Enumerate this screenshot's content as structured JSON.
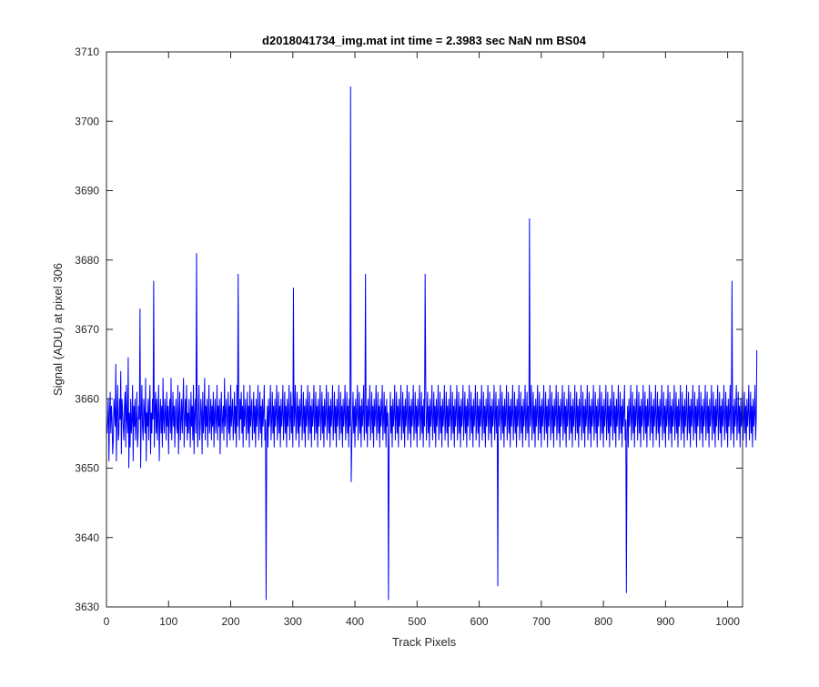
{
  "chart_data": {
    "type": "line",
    "title": "d2018041734_img.mat int time = 2.3983 sec  NaN nm BS04",
    "xlabel": "Track Pixels",
    "ylabel": "Signal (ADU) at pixel 306",
    "xlim": [
      0,
      1024
    ],
    "ylim": [
      3630,
      3710
    ],
    "xticks": [
      0,
      100,
      200,
      300,
      400,
      500,
      600,
      700,
      800,
      900,
      1000
    ],
    "yticks": [
      3630,
      3640,
      3650,
      3660,
      3670,
      3680,
      3690,
      3700,
      3710
    ],
    "grid": false,
    "legend": "none",
    "line_color": "#0000ff",
    "series": [
      {
        "x_start": 1,
        "x_step": 1,
        "values": [
          3655,
          3657,
          3660,
          3651,
          3658,
          3661,
          3655,
          3659,
          3657,
          3652,
          3654,
          3660,
          3658,
          3656,
          3665,
          3651,
          3658,
          3662,
          3654,
          3655,
          3660,
          3657,
          3664,
          3652,
          3660,
          3658,
          3656,
          3654,
          3659,
          3661,
          3653,
          3662,
          3657,
          3655,
          3666,
          3650,
          3658,
          3653,
          3660,
          3655,
          3657,
          3662,
          3651,
          3659,
          3656,
          3660,
          3654,
          3657,
          3661,
          3653,
          3655,
          3659,
          3657,
          3673,
          3650,
          3657,
          3662,
          3656,
          3654,
          3660,
          3658,
          3655,
          3663,
          3651,
          3658,
          3656,
          3660,
          3654,
          3659,
          3662,
          3652,
          3658,
          3655,
          3660,
          3657,
          3677,
          3653,
          3658,
          3661,
          3655,
          3660,
          3654,
          3658,
          3662,
          3651,
          3657,
          3660,
          3655,
          3659,
          3653,
          3663,
          3657,
          3655,
          3660,
          3658,
          3654,
          3661,
          3656,
          3659,
          3652,
          3658,
          3660,
          3655,
          3663,
          3654,
          3657,
          3661,
          3656,
          3659,
          3653,
          3658,
          3660,
          3656,
          3655,
          3662,
          3652,
          3658,
          3661,
          3654,
          3657,
          3660,
          3655,
          3659,
          3663,
          3653,
          3657,
          3660,
          3656,
          3662,
          3654,
          3658,
          3655,
          3660,
          3657,
          3653,
          3661,
          3656,
          3659,
          3654,
          3662,
          3652,
          3658,
          3660,
          3655,
          3681,
          3657,
          3653,
          3659,
          3662,
          3654,
          3656,
          3660,
          3658,
          3652,
          3661,
          3655,
          3657,
          3663,
          3654,
          3659,
          3656,
          3660,
          3653,
          3658,
          3662,
          3655,
          3657,
          3660,
          3654,
          3659,
          3656,
          3661,
          3653,
          3658,
          3660,
          3655,
          3657,
          3662,
          3654,
          3659,
          3656,
          3660,
          3652,
          3658,
          3661,
          3655,
          3657,
          3659,
          3654,
          3663,
          3656,
          3658,
          3660,
          3653,
          3657,
          3661,
          3655,
          3659,
          3654,
          3662,
          3656,
          3658,
          3660,
          3654,
          3657,
          3661,
          3655,
          3659,
          3653,
          3662,
          3656,
          3678,
          3658,
          3654,
          3660,
          3657,
          3661,
          3655,
          3659,
          3653,
          3662,
          3656,
          3658,
          3660,
          3654,
          3657,
          3661,
          3655,
          3659,
          3653,
          3662,
          3656,
          3658,
          3660,
          3654,
          3657,
          3661,
          3655,
          3659,
          3653,
          3660,
          3656,
          3658,
          3662,
          3654,
          3657,
          3661,
          3655,
          3659,
          3653,
          3660,
          3656,
          3658,
          3662,
          3654,
          3657,
          3631,
          3655,
          3659,
          3653,
          3660,
          3656,
          3658,
          3662,
          3654,
          3657,
          3661,
          3655,
          3659,
          3653,
          3660,
          3656,
          3658,
          3662,
          3654,
          3657,
          3661,
          3655,
          3659,
          3653,
          3660,
          3656,
          3658,
          3662,
          3654,
          3657,
          3661,
          3655,
          3659,
          3653,
          3660,
          3656,
          3658,
          3662,
          3654,
          3657,
          3661,
          3655,
          3659,
          3653,
          3676,
          3656,
          3658,
          3662,
          3654,
          3657,
          3661,
          3655,
          3659,
          3653,
          3660,
          3656,
          3658,
          3662,
          3654,
          3657,
          3661,
          3655,
          3659,
          3653,
          3660,
          3656,
          3658,
          3662,
          3654,
          3657,
          3661,
          3655,
          3659,
          3653,
          3660,
          3656,
          3658,
          3662,
          3654,
          3657,
          3661,
          3655,
          3659,
          3653,
          3660,
          3656,
          3658,
          3662,
          3654,
          3657,
          3661,
          3655,
          3659,
          3653,
          3660,
          3656,
          3658,
          3662,
          3654,
          3657,
          3661,
          3655,
          3659,
          3653,
          3660,
          3656,
          3658,
          3662,
          3654,
          3657,
          3661,
          3655,
          3659,
          3653,
          3660,
          3656,
          3658,
          3662,
          3654,
          3657,
          3661,
          3655,
          3659,
          3653,
          3660,
          3656,
          3658,
          3662,
          3654,
          3657,
          3661,
          3655,
          3659,
          3653,
          3660,
          3656,
          3705,
          3648,
          3654,
          3657,
          3661,
          3655,
          3659,
          3653,
          3660,
          3656,
          3658,
          3662,
          3654,
          3657,
          3661,
          3655,
          3659,
          3653,
          3660,
          3656,
          3658,
          3662,
          3654,
          3657,
          3678,
          3655,
          3659,
          3653,
          3660,
          3656,
          3658,
          3662,
          3654,
          3657,
          3661,
          3655,
          3659,
          3653,
          3660,
          3656,
          3658,
          3662,
          3654,
          3657,
          3661,
          3655,
          3659,
          3653,
          3660,
          3656,
          3658,
          3662,
          3654,
          3657,
          3661,
          3655,
          3659,
          3653,
          3660,
          3656,
          3658,
          3631,
          3654,
          3657,
          3661,
          3655,
          3659,
          3653,
          3660,
          3656,
          3658,
          3662,
          3654,
          3657,
          3661,
          3655,
          3659,
          3653,
          3660,
          3656,
          3658,
          3662,
          3654,
          3657,
          3661,
          3655,
          3659,
          3653,
          3660,
          3656,
          3658,
          3662,
          3654,
          3657,
          3661,
          3655,
          3659,
          3653,
          3660,
          3656,
          3658,
          3662,
          3654,
          3657,
          3661,
          3655,
          3659,
          3653,
          3660,
          3656,
          3658,
          3662,
          3654,
          3657,
          3661,
          3655,
          3659,
          3653,
          3660,
          3656,
          3678,
          3662,
          3654,
          3657,
          3661,
          3655,
          3659,
          3653,
          3660,
          3656,
          3658,
          3662,
          3654,
          3657,
          3661,
          3655,
          3659,
          3653,
          3660,
          3656,
          3658,
          3662,
          3654,
          3657,
          3661,
          3655,
          3659,
          3653,
          3660,
          3656,
          3658,
          3662,
          3654,
          3657,
          3661,
          3655,
          3659,
          3653,
          3660,
          3656,
          3658,
          3662,
          3654,
          3657,
          3661,
          3655,
          3659,
          3653,
          3660,
          3656,
          3658,
          3662,
          3654,
          3657,
          3661,
          3655,
          3659,
          3653,
          3660,
          3656,
          3658,
          3662,
          3654,
          3657,
          3661,
          3655,
          3659,
          3653,
          3660,
          3656,
          3658,
          3662,
          3654,
          3657,
          3661,
          3655,
          3659,
          3653,
          3660,
          3656,
          3658,
          3662,
          3654,
          3657,
          3661,
          3655,
          3659,
          3653,
          3660,
          3656,
          3658,
          3662,
          3654,
          3657,
          3661,
          3655,
          3659,
          3653,
          3660,
          3656,
          3658,
          3662,
          3654,
          3657,
          3661,
          3655,
          3659,
          3653,
          3660,
          3656,
          3658,
          3662,
          3654,
          3657,
          3661,
          3655,
          3659,
          3633,
          3660,
          3656,
          3658,
          3662,
          3654,
          3657,
          3661,
          3655,
          3659,
          3653,
          3660,
          3656,
          3658,
          3662,
          3654,
          3657,
          3661,
          3655,
          3659,
          3653,
          3660,
          3656,
          3658,
          3662,
          3654,
          3657,
          3661,
          3655,
          3659,
          3653,
          3660,
          3656,
          3658,
          3662,
          3654,
          3657,
          3661,
          3655,
          3659,
          3653,
          3660,
          3656,
          3658,
          3662,
          3654,
          3657,
          3661,
          3655,
          3659,
          3653,
          3686,
          3656,
          3658,
          3662,
          3654,
          3657,
          3661,
          3655,
          3659,
          3653,
          3660,
          3656,
          3658,
          3662,
          3654,
          3657,
          3661,
          3655,
          3659,
          3653,
          3660,
          3656,
          3658,
          3662,
          3654,
          3657,
          3661,
          3655,
          3659,
          3653,
          3660,
          3656,
          3658,
          3662,
          3654,
          3657,
          3661,
          3655,
          3659,
          3653,
          3660,
          3656,
          3658,
          3662,
          3654,
          3657,
          3661,
          3655,
          3659,
          3653,
          3660,
          3656,
          3658,
          3662,
          3654,
          3657,
          3661,
          3655,
          3659,
          3653,
          3660,
          3656,
          3658,
          3662,
          3654,
          3657,
          3661,
          3655,
          3659,
          3653,
          3660,
          3656,
          3658,
          3662,
          3654,
          3657,
          3661,
          3655,
          3659,
          3653,
          3660,
          3656,
          3658,
          3662,
          3654,
          3657,
          3661,
          3655,
          3659,
          3653,
          3660,
          3656,
          3658,
          3662,
          3654,
          3657,
          3661,
          3655,
          3659,
          3653,
          3660,
          3656,
          3658,
          3662,
          3654,
          3657,
          3661,
          3655,
          3659,
          3653,
          3660,
          3656,
          3658,
          3662,
          3654,
          3657,
          3661,
          3655,
          3659,
          3653,
          3660,
          3656,
          3658,
          3662,
          3654,
          3657,
          3661,
          3655,
          3659,
          3653,
          3660,
          3656,
          3658,
          3662,
          3654,
          3657,
          3661,
          3655,
          3659,
          3653,
          3660,
          3656,
          3658,
          3662,
          3654,
          3657,
          3661,
          3655,
          3659,
          3653,
          3660,
          3656,
          3658,
          3662,
          3654,
          3657,
          3632,
          3655,
          3659,
          3653,
          3660,
          3656,
          3658,
          3662,
          3654,
          3657,
          3661,
          3655,
          3659,
          3653,
          3660,
          3656,
          3658,
          3662,
          3654,
          3657,
          3661,
          3655,
          3659,
          3653,
          3660,
          3656,
          3658,
          3662,
          3654,
          3657,
          3661,
          3655,
          3659,
          3653,
          3660,
          3656,
          3658,
          3662,
          3654,
          3657,
          3661,
          3655,
          3659,
          3653,
          3660,
          3656,
          3658,
          3662,
          3654,
          3657,
          3661,
          3655,
          3659,
          3653,
          3660,
          3656,
          3658,
          3662,
          3654,
          3657,
          3661,
          3655,
          3659,
          3653,
          3660,
          3656,
          3658,
          3662,
          3654,
          3657,
          3661,
          3655,
          3659,
          3653,
          3660,
          3656,
          3658,
          3662,
          3654,
          3657,
          3661,
          3655,
          3659,
          3653,
          3660,
          3656,
          3658,
          3662,
          3654,
          3657,
          3661,
          3655,
          3659,
          3653,
          3660,
          3656,
          3658,
          3662,
          3654,
          3657,
          3661,
          3655,
          3659,
          3653,
          3660,
          3656,
          3658,
          3662,
          3654,
          3657,
          3661,
          3655,
          3659,
          3653,
          3660,
          3656,
          3658,
          3662,
          3654,
          3657,
          3661,
          3655,
          3659,
          3653,
          3660,
          3656,
          3658,
          3662,
          3654,
          3657,
          3661,
          3655,
          3659,
          3653,
          3660,
          3656,
          3658,
          3662,
          3654,
          3657,
          3661,
          3655,
          3659,
          3653,
          3660,
          3656,
          3658,
          3662,
          3654,
          3657,
          3661,
          3655,
          3659,
          3653,
          3660,
          3656,
          3658,
          3662,
          3654,
          3657,
          3661,
          3655,
          3659,
          3653,
          3660,
          3656,
          3658,
          3662,
          3654,
          3657,
          3677,
          3655,
          3659,
          3653,
          3660,
          3656,
          3658,
          3662,
          3654,
          3657,
          3661,
          3655,
          3659,
          3653,
          3660,
          3656,
          3658,
          3662,
          3654,
          3657,
          3661,
          3655,
          3659,
          3653,
          3660,
          3656,
          3658,
          3662,
          3654,
          3657,
          3661,
          3655,
          3659,
          3653,
          3660,
          3656,
          3658,
          3662,
          3654,
          3657,
          3667
        ]
      }
    ]
  }
}
